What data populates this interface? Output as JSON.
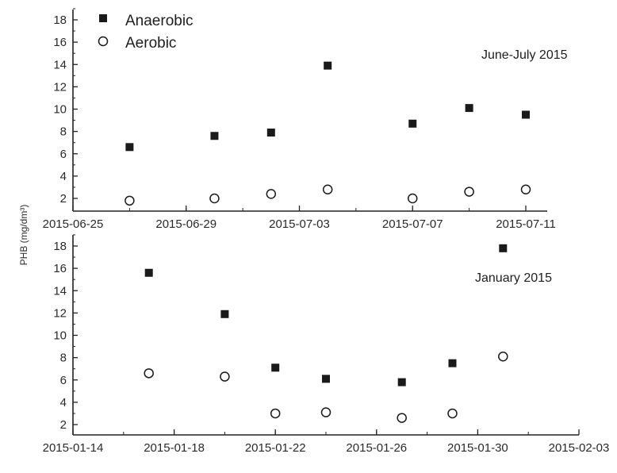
{
  "chart_data": {
    "ylabel": "PHB (mg/dm³)",
    "legend": {
      "placement": "top-left",
      "entries": [
        {
          "label": "Anaerobic",
          "marker": "filled-square"
        },
        {
          "label": "Aerobic",
          "marker": "open-circle"
        }
      ]
    },
    "colors": {
      "marker": "#1a1a1a",
      "axis": "#222222"
    },
    "panels": [
      {
        "type": "scatter",
        "annotation": "June-July 2015",
        "xlim": [
          "2015-06-25",
          "2015-07-12"
        ],
        "x_ticks": [
          "2015-06-25",
          "2015-06-29",
          "2015-07-03",
          "2015-07-07",
          "2015-07-11"
        ],
        "ylim": [
          0.8,
          19
        ],
        "y_ticks": [
          2,
          4,
          6,
          8,
          10,
          12,
          14,
          16,
          18
        ],
        "grid": false,
        "series": [
          {
            "name": "Anaerobic",
            "x": [
              "2015-06-27",
              "2015-06-30",
              "2015-07-02",
              "2015-07-04",
              "2015-07-07",
              "2015-07-09",
              "2015-07-11"
            ],
            "y": [
              6.6,
              7.6,
              7.9,
              13.9,
              8.7,
              10.1,
              9.5
            ]
          },
          {
            "name": "Aerobic",
            "x": [
              "2015-06-27",
              "2015-06-30",
              "2015-07-02",
              "2015-07-04",
              "2015-07-07",
              "2015-07-09",
              "2015-07-11"
            ],
            "y": [
              1.8,
              2.0,
              2.4,
              2.8,
              2.0,
              2.6,
              2.8
            ]
          }
        ]
      },
      {
        "type": "scatter",
        "annotation": "January 2015",
        "xlim": [
          "2015-01-14",
          "2015-02-03"
        ],
        "x_ticks": [
          "2015-01-14",
          "2015-01-18",
          "2015-01-22",
          "2015-01-26",
          "2015-01-30",
          "2015-02-03"
        ],
        "ylim": [
          0,
          19
        ],
        "y_ticks": [
          2,
          4,
          6,
          8,
          10,
          12,
          14,
          16,
          18
        ],
        "grid": false,
        "series": [
          {
            "name": "Anaerobic",
            "x": [
              "2015-01-17",
              "2015-01-20",
              "2015-01-22",
              "2015-01-24",
              "2015-01-27",
              "2015-01-29",
              "2015-01-31"
            ],
            "y": [
              15.6,
              11.9,
              7.1,
              6.1,
              5.8,
              7.5,
              17.8
            ]
          },
          {
            "name": "Aerobic",
            "x": [
              "2015-01-17",
              "2015-01-20",
              "2015-01-22",
              "2015-01-24",
              "2015-01-27",
              "2015-01-29",
              "2015-01-31"
            ],
            "y": [
              6.6,
              6.3,
              3.0,
              3.1,
              2.6,
              3.0,
              8.1
            ]
          }
        ]
      }
    ]
  }
}
